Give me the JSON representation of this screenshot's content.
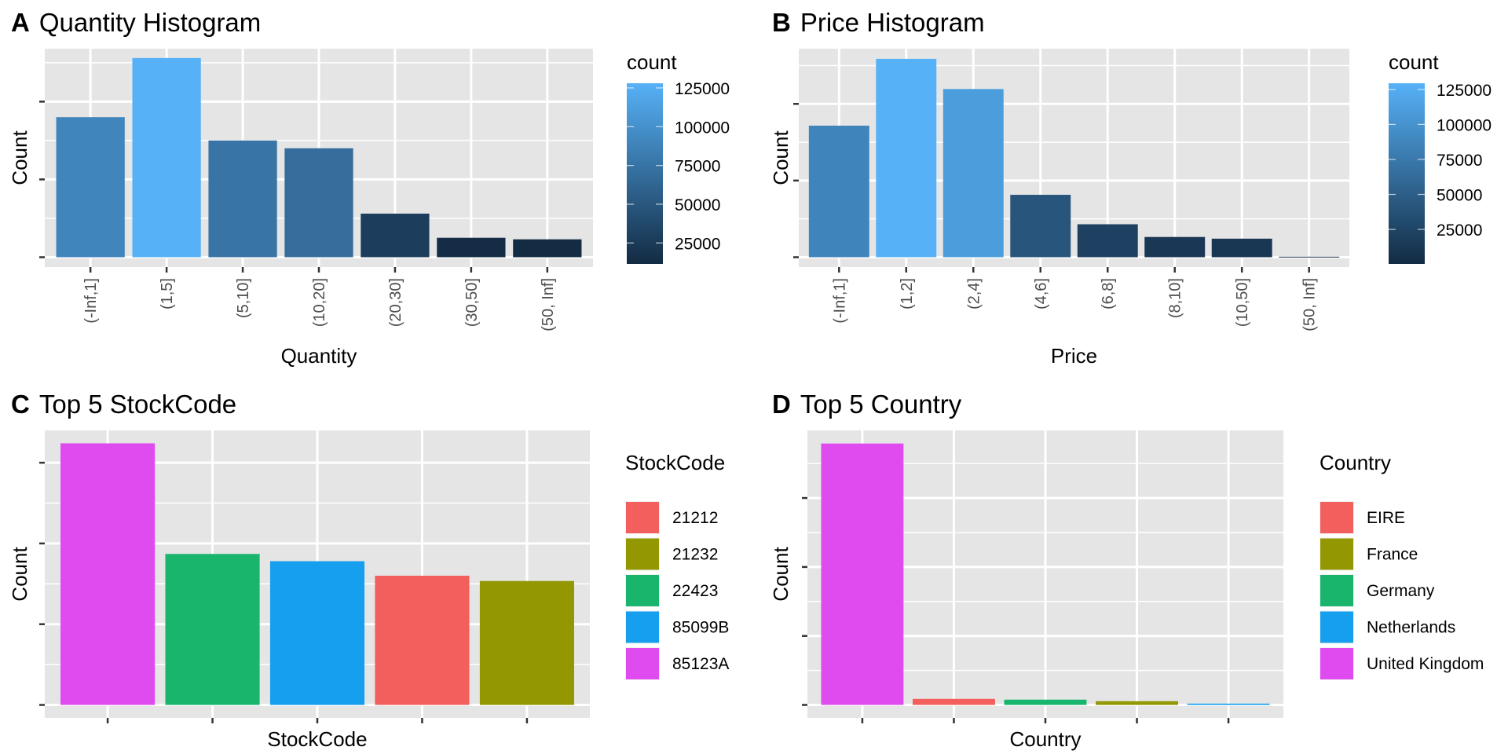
{
  "chart_data": [
    {
      "id": "A",
      "type": "bar",
      "tag": "A",
      "title": "Quantity Histogram",
      "xlabel": "Quantity",
      "ylabel": "Count",
      "categories": [
        "(-Inf,1]",
        "(1,5]",
        "(5,10]",
        "(10,20]",
        "(20,30]",
        "(30,50]",
        "(50, Inf]"
      ],
      "values": [
        90000,
        128000,
        75000,
        70000,
        28000,
        12500,
        11500
      ],
      "y_ticks": [
        0,
        50000,
        100000
      ],
      "y_tick_labels_shown": false,
      "ylim": [
        0,
        134000
      ],
      "grid": true,
      "fill": "count (continuous gradient)",
      "legend": {
        "title": "count",
        "type": "colorbar",
        "labels": [
          "125000",
          "100000",
          "75000",
          "50000",
          "25000"
        ],
        "low_color": "#132B43",
        "high_color": "#56B1F7",
        "range": [
          11500,
          128000
        ],
        "placement": "right"
      }
    },
    {
      "id": "B",
      "type": "bar",
      "tag": "B",
      "title": "Price Histogram",
      "xlabel": "Price",
      "ylabel": "Count",
      "categories": [
        "(-Inf,1]",
        "(1,2]",
        "(2,4]",
        "(4,6]",
        "(6,8]",
        "(8,10]",
        "(10,50]",
        "(50, Inf]"
      ],
      "values": [
        85800,
        129400,
        109700,
        40700,
        21500,
        13200,
        12100,
        350
      ],
      "y_ticks": [
        0,
        50000,
        100000
      ],
      "y_tick_labels_shown": false,
      "ylim": [
        0,
        136000
      ],
      "grid": true,
      "fill": "count (continuous gradient)",
      "legend": {
        "title": "count",
        "type": "colorbar",
        "labels": [
          "125000",
          "100000",
          "75000",
          "50000",
          "25000"
        ],
        "low_color": "#132B43",
        "high_color": "#56B1F7",
        "range": [
          350,
          129400
        ],
        "placement": "right"
      }
    },
    {
      "id": "C",
      "type": "bar",
      "tag": "C",
      "title": "Top 5 StockCode",
      "xlabel": "StockCode",
      "ylabel": "Count",
      "categories": [
        "85123A",
        "22423",
        "85099B",
        "21212",
        "21232"
      ],
      "values": [
        3240,
        1870,
        1780,
        1600,
        1535
      ],
      "colors": [
        "#DF4BEF",
        "#1AB56D",
        "#169FEF",
        "#F25F5C",
        "#939802"
      ],
      "y_ticks": [
        0,
        1000,
        2000,
        3000
      ],
      "y_tick_labels_shown": false,
      "x_tick_labels_shown": false,
      "ylim": [
        0,
        3400
      ],
      "grid": true,
      "legend": {
        "title": "StockCode",
        "type": "discrete",
        "items": [
          {
            "label": "21212",
            "color": "#F25F5C"
          },
          {
            "label": "21232",
            "color": "#939802"
          },
          {
            "label": "22423",
            "color": "#1AB56D"
          },
          {
            "label": "85099B",
            "color": "#169FEF"
          },
          {
            "label": "85123A",
            "color": "#DF4BEF"
          }
        ],
        "placement": "right"
      }
    },
    {
      "id": "D",
      "type": "bar",
      "tag": "D",
      "title": "Top 5 Country",
      "xlabel": "Country",
      "ylabel": "Count",
      "categories": [
        "United Kingdom",
        "EIRE",
        "Germany",
        "France",
        "Netherlands"
      ],
      "values": [
        379000,
        8800,
        7700,
        5400,
        1900
      ],
      "colors": [
        "#DF4BEF",
        "#F25F5C",
        "#1AB56D",
        "#939802",
        "#169FEF"
      ],
      "y_ticks": [
        0,
        100000,
        200000,
        300000
      ],
      "y_tick_labels_shown": false,
      "x_tick_labels_shown": false,
      "ylim": [
        0,
        398000
      ],
      "grid": true,
      "legend": {
        "title": "Country",
        "type": "discrete",
        "items": [
          {
            "label": "EIRE",
            "color": "#F25F5C"
          },
          {
            "label": "France",
            "color": "#939802"
          },
          {
            "label": "Germany",
            "color": "#1AB56D"
          },
          {
            "label": "Netherlands",
            "color": "#169FEF"
          },
          {
            "label": "United Kingdom",
            "color": "#DF4BEF"
          }
        ],
        "placement": "right"
      }
    }
  ],
  "theme": {
    "panel_bg": "#E5E5E5",
    "grid_color": "#FFFFFF",
    "tick_color": "#333333"
  }
}
